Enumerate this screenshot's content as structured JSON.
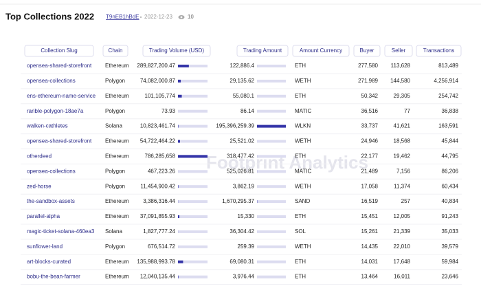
{
  "header": {
    "title": "Top Collections 2022",
    "author": "T9nEB1hBdE",
    "date": "2022-12-23",
    "views": "10"
  },
  "watermark": "Footprint Analytics",
  "table": {
    "columns": [
      "Collection Slug",
      "Chain",
      "Trading Volume (USD)",
      "Trading Amount",
      "Amount Currency",
      "Buyer",
      "Seller",
      "Transactions"
    ],
    "rows": [
      [
        "opensea-shared-storefront",
        "Ethereum",
        "289,827,200.47",
        "122,886.4",
        "ETH",
        "277,580",
        "113,628",
        "813,489"
      ],
      [
        "opensea-collections",
        "Polygon",
        "74,082,000.87",
        "29,135.62",
        "WETH",
        "271,989",
        "144,580",
        "4,256,914"
      ],
      [
        "ens-ethereum-name-service",
        "Ethereum",
        "101,105,774",
        "55,080.1",
        "ETH",
        "50,342",
        "29,305",
        "254,742"
      ],
      [
        "rarible-polygon-18ae7a",
        "Polygon",
        "73.93",
        "86.14",
        "MATIC",
        "36,516",
        "77",
        "36,838"
      ],
      [
        "walken-cathletes",
        "Solana",
        "10,823,461.74",
        "195,396,259.39",
        "WLKN",
        "33,737",
        "41,621",
        "163,591"
      ],
      [
        "opensea-shared-storefront",
        "Ethereum",
        "54,722,464.22",
        "25,521.02",
        "WETH",
        "24,946",
        "18,568",
        "45,844"
      ],
      [
        "otherdeed",
        "Ethereum",
        "786,285,658",
        "318,477.42",
        "ETH",
        "22,177",
        "19,462",
        "44,795"
      ],
      [
        "opensea-collections",
        "Polygon",
        "467,223.26",
        "525,026.81",
        "MATIC",
        "21,489",
        "7,156",
        "86,206"
      ],
      [
        "zed-horse",
        "Polygon",
        "11,454,900.42",
        "3,862.19",
        "WETH",
        "17,058",
        "11,374",
        "60,434"
      ],
      [
        "the-sandbox-assets",
        "Ethereum",
        "3,386,316.44",
        "1,670,295.37",
        "SAND",
        "16,519",
        "257",
        "40,834"
      ],
      [
        "parallel-alpha",
        "Ethereum",
        "37,091,855.93",
        "15,330",
        "ETH",
        "15,451",
        "12,005",
        "91,243"
      ],
      [
        "magic-ticket-solana-460ea3",
        "Solana",
        "1,827,777.24",
        "36,304.42",
        "SOL",
        "15,261",
        "21,339",
        "35,033"
      ],
      [
        "sunflower-land",
        "Polygon",
        "676,514.72",
        "259.39",
        "WETH",
        "14,435",
        "22,010",
        "39,579"
      ],
      [
        "art-blocks-curated",
        "Ethereum",
        "135,988,993.78",
        "69,080.31",
        "ETH",
        "14,031",
        "17,648",
        "59,984"
      ],
      [
        "bobu-the-bean-farmer",
        "Ethereum",
        "12,040,135.44",
        "3,976.44",
        "ETH",
        "13,464",
        "16,011",
        "23,646"
      ]
    ]
  }
}
